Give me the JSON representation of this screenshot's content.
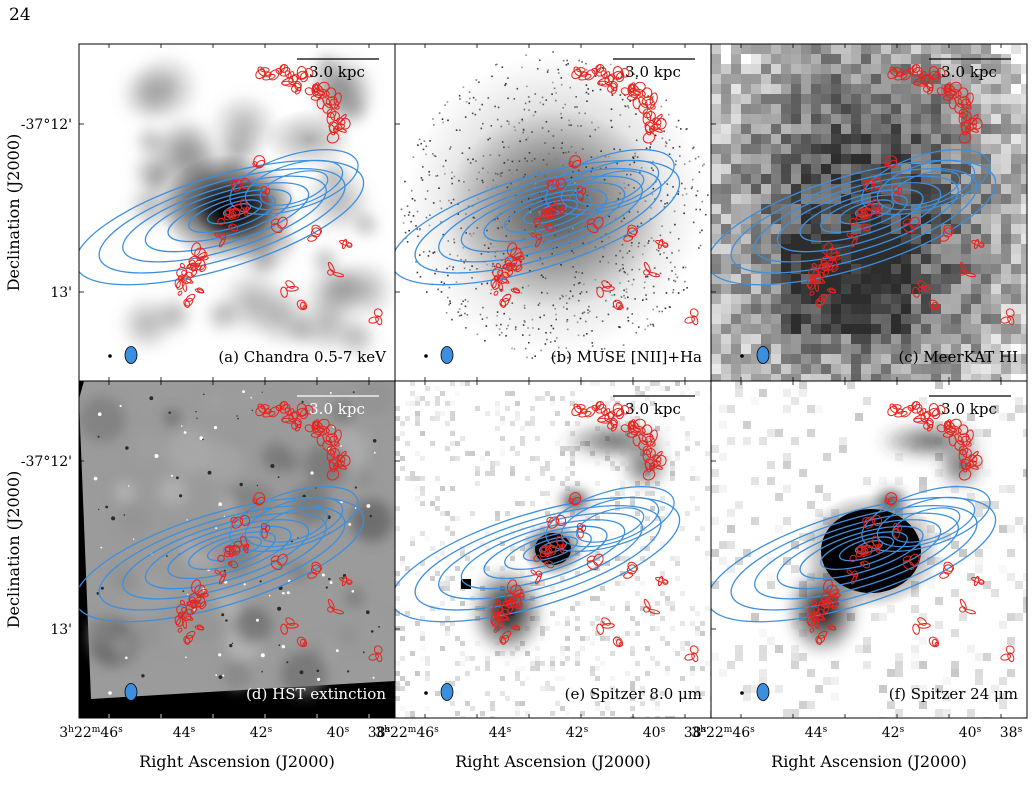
{
  "page": {
    "number": "24"
  },
  "figure": {
    "panels": [
      {
        "label": "(a) Chandra 0.5-7 keV",
        "scale_bar": "3.0 kpc",
        "background": "chandra"
      },
      {
        "label": "(b) MUSE [NII]+Ha",
        "scale_bar": "3.0 kpc",
        "background": "muse"
      },
      {
        "label": "(c) MeerKAT HI",
        "scale_bar": "3.0 kpc",
        "background": "meerkat"
      },
      {
        "label": "(d) HST extinction",
        "scale_bar": "3.0 kpc",
        "background": "hst"
      },
      {
        "label": "(e) Spitzer 8.0 μm",
        "scale_bar": "3.0 kpc",
        "background": "spitzer8"
      },
      {
        "label": "(f) Spitzer 24 μm",
        "scale_bar": "3.0 kpc",
        "background": "spitzer24"
      }
    ],
    "y_axis": {
      "label": "Declination (J2000)",
      "ticks": [
        "-37°12'",
        "13'"
      ]
    },
    "x_axis": {
      "label": "Right Ascension (J2000)",
      "ticks": [
        {
          "base": "3",
          "sup1": "h",
          "mid": "22",
          "sup2": "m",
          "val": "46",
          "sup3": "s"
        },
        {
          "val": "44",
          "sup3": "s"
        },
        {
          "val": "42",
          "sup3": "s"
        },
        {
          "val": "40",
          "sup3": "s"
        },
        {
          "val": "38",
          "sup3": "s"
        }
      ]
    },
    "colors": {
      "contour_red": "#e8231e",
      "contour_blue": "#3c8fde",
      "beam_fill": "#3c8fde"
    }
  }
}
